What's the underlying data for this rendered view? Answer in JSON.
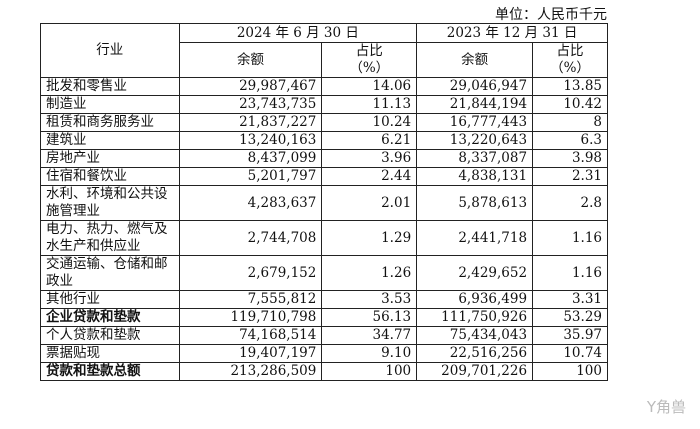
{
  "unit": "单位：人民币千元",
  "header": {
    "industry": "行业",
    "date1": "2024 年 6 月 30 日",
    "date2": "2023 年 12 月 31 日",
    "balance": "余额",
    "ratio": "占比",
    "pct": "（%）"
  },
  "rows": [
    {
      "name": "批发和零售业",
      "b1": "29,987,467",
      "p1": "14.06",
      "b2": "29,046,947",
      "p2": "13.85"
    },
    {
      "name": "制造业",
      "b1": "23,743,735",
      "p1": "11.13",
      "b2": "21,844,194",
      "p2": "10.42"
    },
    {
      "name": "租赁和商务服务业",
      "b1": "21,837,227",
      "p1": "10.24",
      "b2": "16,777,443",
      "p2": "8"
    },
    {
      "name": "建筑业",
      "b1": "13,240,163",
      "p1": "6.21",
      "b2": "13,220,643",
      "p2": "6.3"
    },
    {
      "name": "房地产业",
      "b1": "8,437,099",
      "p1": "3.96",
      "b2": "8,337,087",
      "p2": "3.98"
    },
    {
      "name": "住宿和餐饮业",
      "b1": "5,201,797",
      "p1": "2.44",
      "b2": "4,838,131",
      "p2": "2.31"
    },
    {
      "name": "水利、环境和公共设施管理业",
      "b1": "4,283,637",
      "p1": "2.01",
      "b2": "5,878,613",
      "p2": "2.8"
    },
    {
      "name": "电力、热力、燃气及水生产和供应业",
      "b1": "2,744,708",
      "p1": "1.29",
      "b2": "2,441,718",
      "p2": "1.16"
    },
    {
      "name": "交通运输、仓储和邮政业",
      "b1": "2,679,152",
      "p1": "1.26",
      "b2": "2,429,652",
      "p2": "1.16"
    },
    {
      "name": "其他行业",
      "b1": "7,555,812",
      "p1": "3.53",
      "b2": "6,936,499",
      "p2": "3.31"
    },
    {
      "name": "企业贷款和垫款",
      "b1": "119,710,798",
      "p1": "56.13",
      "b2": "111,750,926",
      "p2": "53.29"
    },
    {
      "name": "个人贷款和垫款",
      "b1": "74,168,514",
      "p1": "34.77",
      "b2": "75,434,043",
      "p2": "35.97"
    },
    {
      "name": "票据贴现",
      "b1": "19,407,197",
      "p1": "9.10",
      "b2": "22,516,256",
      "p2": "10.74"
    },
    {
      "name": "贷款和垫款总额",
      "b1": "213,286,509",
      "p1": "100",
      "b2": "209,701,226",
      "p2": "100"
    }
  ],
  "watermark": "Y角兽"
}
